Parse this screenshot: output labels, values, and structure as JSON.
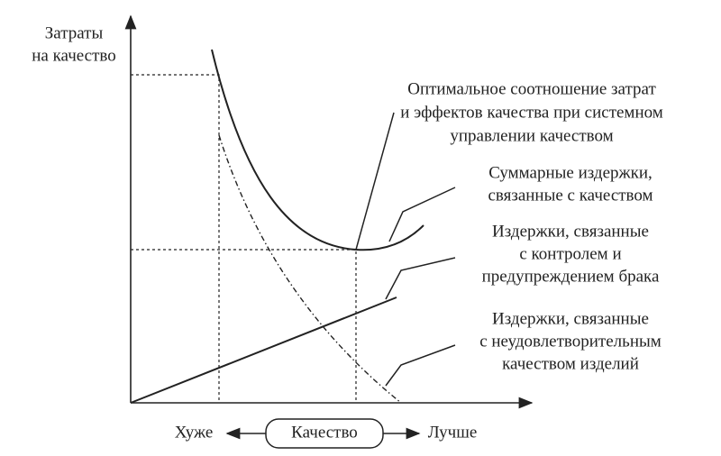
{
  "y_axis_label": [
    "Затраты",
    "на качество"
  ],
  "annotations": {
    "optimum": [
      "Оптимальное соотношение затрат",
      "и эффектов качества при системном",
      "управлении качеством"
    ],
    "total": [
      "Суммарные издержки,",
      "связанные с качеством"
    ],
    "prevention": [
      "Издержки, связанные",
      "с контролем и",
      "предупреждением брака"
    ],
    "failure": [
      "Издержки, связанные",
      "с неудовлетворительным",
      "качеством изделий"
    ]
  },
  "x_axis": {
    "worse": "Хуже",
    "label": "Качество",
    "better": "Лучше"
  }
}
